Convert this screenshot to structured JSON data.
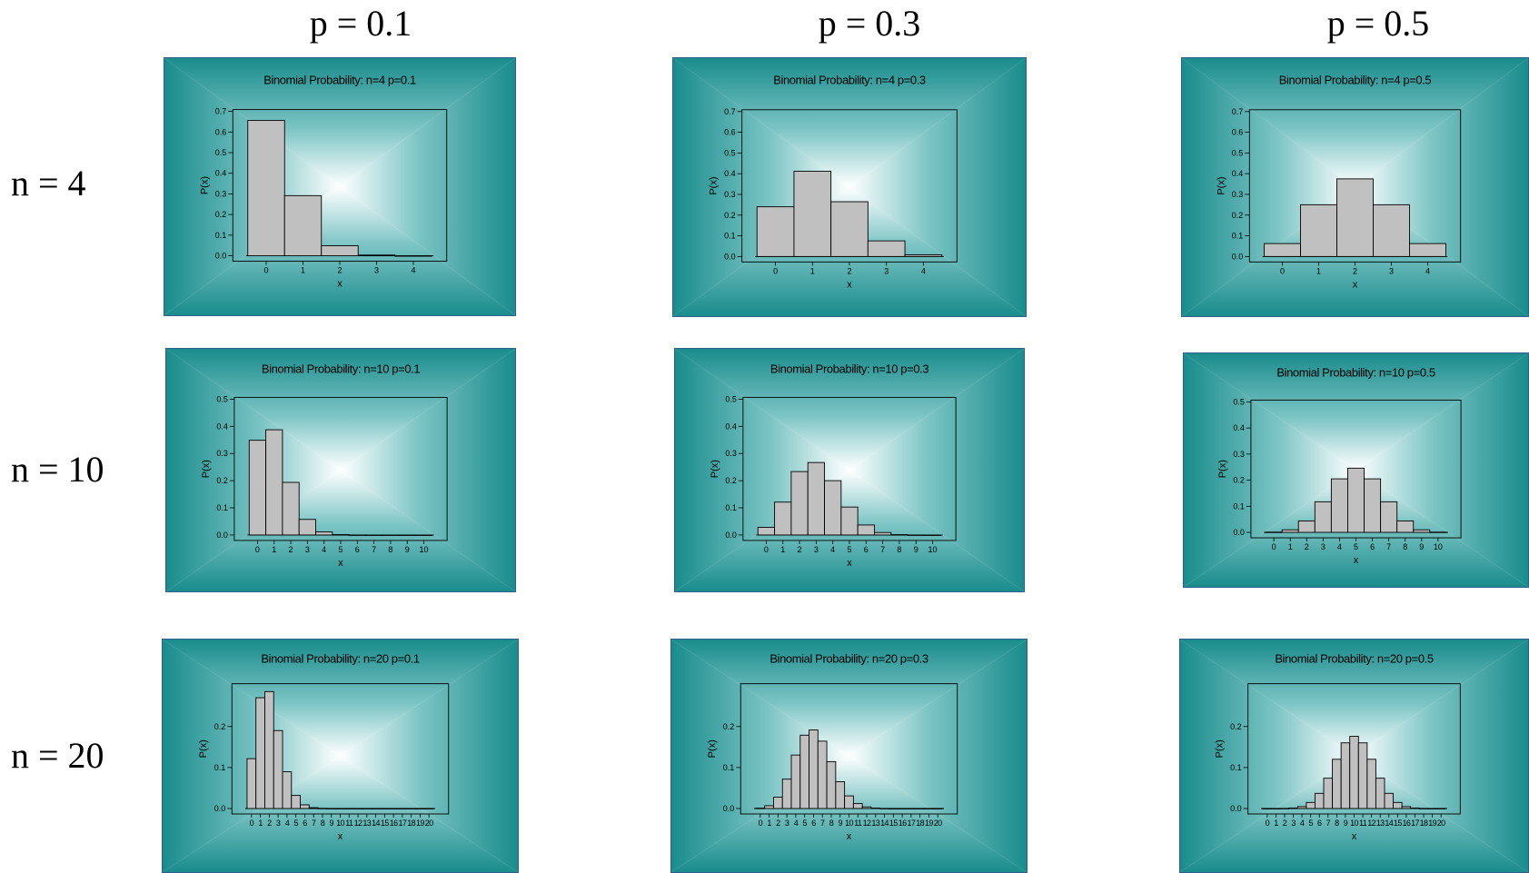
{
  "col_labels": [
    "p = 0.1",
    "p = 0.3",
    "p = 0.5"
  ],
  "row_labels": [
    "n = 4",
    "n = 10",
    "n = 20"
  ],
  "colors": {
    "panel_edge": "#1a8c8c",
    "panel_center": "#ffffff",
    "bar_fill": "#c0c0c0",
    "bar_stroke": "#000000"
  },
  "chart_data": [
    {
      "type": "bar",
      "title": "Binomial Probability: n=4 p=0.1",
      "xlabel": "x",
      "ylabel": "P(x)",
      "x": [
        0,
        1,
        2,
        3,
        4
      ],
      "values": [
        0.6561,
        0.2916,
        0.0486,
        0.0036,
        0.0001
      ],
      "ylim": [
        0,
        0.7
      ],
      "yticks": [
        "0.0",
        "0.1",
        "0.2",
        "0.3",
        "0.4",
        "0.5",
        "0.6",
        "0.7"
      ],
      "xticks": [
        "0",
        "1",
        "2",
        "3",
        "4"
      ]
    },
    {
      "type": "bar",
      "title": "Binomial Probability: n=4 p=0.3",
      "xlabel": "x",
      "ylabel": "P(x)",
      "x": [
        0,
        1,
        2,
        3,
        4
      ],
      "values": [
        0.2401,
        0.4116,
        0.2646,
        0.0756,
        0.0081
      ],
      "ylim": [
        0,
        0.7
      ],
      "yticks": [
        "0.0",
        "0.1",
        "0.2",
        "0.3",
        "0.4",
        "0.5",
        "0.6",
        "0.7"
      ],
      "xticks": [
        "0",
        "1",
        "2",
        "3",
        "4"
      ]
    },
    {
      "type": "bar",
      "title": "Binomial Probability: n=4 p=0.5",
      "xlabel": "x",
      "ylabel": "P(x)",
      "x": [
        0,
        1,
        2,
        3,
        4
      ],
      "values": [
        0.0625,
        0.25,
        0.375,
        0.25,
        0.0625
      ],
      "ylim": [
        0,
        0.7
      ],
      "yticks": [
        "0.0",
        "0.1",
        "0.2",
        "0.3",
        "0.4",
        "0.5",
        "0.6",
        "0.7"
      ],
      "xticks": [
        "0",
        "1",
        "2",
        "3",
        "4"
      ]
    },
    {
      "type": "bar",
      "title": "Binomial Probability: n=10 p=0.1",
      "xlabel": "x",
      "ylabel": "P(x)",
      "x": [
        0,
        1,
        2,
        3,
        4,
        5,
        6,
        7,
        8,
        9,
        10
      ],
      "values": [
        0.3487,
        0.3874,
        0.1937,
        0.0574,
        0.0112,
        0.0015,
        0.0001,
        0,
        0,
        0,
        0
      ],
      "ylim": [
        0,
        0.5
      ],
      "yticks": [
        "0.0",
        "0.1",
        "0.2",
        "0.3",
        "0.4",
        "0.5"
      ],
      "xticks": [
        "0",
        "1",
        "2",
        "3",
        "4",
        "5",
        "6",
        "7",
        "8",
        "9",
        "10"
      ]
    },
    {
      "type": "bar",
      "title": "Binomial Probability: n=10 p=0.3",
      "xlabel": "x",
      "ylabel": "P(x)",
      "x": [
        0,
        1,
        2,
        3,
        4,
        5,
        6,
        7,
        8,
        9,
        10
      ],
      "values": [
        0.0282,
        0.1211,
        0.2335,
        0.2668,
        0.2001,
        0.1029,
        0.0368,
        0.009,
        0.0014,
        0.0001,
        0
      ],
      "ylim": [
        0,
        0.5
      ],
      "yticks": [
        "0.0",
        "0.1",
        "0.2",
        "0.3",
        "0.4",
        "0.5"
      ],
      "xticks": [
        "0",
        "1",
        "2",
        "3",
        "4",
        "5",
        "6",
        "7",
        "8",
        "9",
        "10"
      ]
    },
    {
      "type": "bar",
      "title": "Binomial Probability: n=10 p=0.5",
      "xlabel": "x",
      "ylabel": "P(x)",
      "x": [
        0,
        1,
        2,
        3,
        4,
        5,
        6,
        7,
        8,
        9,
        10
      ],
      "values": [
        0.001,
        0.0098,
        0.0439,
        0.1172,
        0.2051,
        0.2461,
        0.2051,
        0.1172,
        0.0439,
        0.0098,
        0.001
      ],
      "ylim": [
        0,
        0.5
      ],
      "yticks": [
        "0.0",
        "0.1",
        "0.2",
        "0.3",
        "0.4",
        "0.5"
      ],
      "xticks": [
        "0",
        "1",
        "2",
        "3",
        "4",
        "5",
        "6",
        "7",
        "8",
        "9",
        "10"
      ]
    },
    {
      "type": "bar",
      "title": "Binomial Probability: n=20 p=0.1",
      "xlabel": "x",
      "ylabel": "P(x)",
      "x": [
        0,
        1,
        2,
        3,
        4,
        5,
        6,
        7,
        8,
        9,
        10,
        11,
        12,
        13,
        14,
        15,
        16,
        17,
        18,
        19,
        20
      ],
      "values": [
        0.1216,
        0.2702,
        0.2852,
        0.1901,
        0.0898,
        0.0319,
        0.0089,
        0.002,
        0.0004,
        0.0001,
        0,
        0,
        0,
        0,
        0,
        0,
        0,
        0,
        0,
        0,
        0
      ],
      "ylim": [
        0,
        0.3
      ],
      "yticks": [
        "0.0",
        "0.1",
        "0.2"
      ],
      "xticks": [
        "0",
        "1",
        "2",
        "3",
        "4",
        "5",
        "6",
        "7",
        "8",
        "9",
        "10",
        "11",
        "12",
        "13",
        "14",
        "15",
        "16",
        "17",
        "18",
        "19",
        "20"
      ]
    },
    {
      "type": "bar",
      "title": "Binomial Probability: n=20 p=0.3",
      "xlabel": "x",
      "ylabel": "P(x)",
      "x": [
        0,
        1,
        2,
        3,
        4,
        5,
        6,
        7,
        8,
        9,
        10,
        11,
        12,
        13,
        14,
        15,
        16,
        17,
        18,
        19,
        20
      ],
      "values": [
        0.0008,
        0.0068,
        0.0278,
        0.0716,
        0.1304,
        0.1789,
        0.1916,
        0.1643,
        0.1144,
        0.0654,
        0.0308,
        0.012,
        0.0039,
        0.001,
        0.0002,
        0,
        0,
        0,
        0,
        0,
        0
      ],
      "ylim": [
        0,
        0.3
      ],
      "yticks": [
        "0.0",
        "0.1",
        "0.2"
      ],
      "xticks": [
        "0",
        "1",
        "2",
        "3",
        "4",
        "5",
        "6",
        "7",
        "8",
        "9",
        "10",
        "11",
        "12",
        "13",
        "14",
        "15",
        "16",
        "17",
        "18",
        "19",
        "20"
      ]
    },
    {
      "type": "bar",
      "title": "Binomial Probability: n=20 p=0.5",
      "xlabel": "x",
      "ylabel": "P(x)",
      "x": [
        0,
        1,
        2,
        3,
        4,
        5,
        6,
        7,
        8,
        9,
        10,
        11,
        12,
        13,
        14,
        15,
        16,
        17,
        18,
        19,
        20
      ],
      "values": [
        0,
        0,
        0.0002,
        0.0011,
        0.0046,
        0.0148,
        0.037,
        0.0739,
        0.1201,
        0.1602,
        0.1762,
        0.1602,
        0.1201,
        0.0739,
        0.037,
        0.0148,
        0.0046,
        0.0011,
        0.0002,
        0,
        0
      ],
      "ylim": [
        0,
        0.3
      ],
      "yticks": [
        "0.0",
        "0.1",
        "0.2"
      ],
      "xticks": [
        "0",
        "1",
        "2",
        "3",
        "4",
        "5",
        "6",
        "7",
        "8",
        "9",
        "10",
        "11",
        "12",
        "13",
        "14",
        "15",
        "16",
        "17",
        "18",
        "19",
        "20"
      ]
    }
  ]
}
